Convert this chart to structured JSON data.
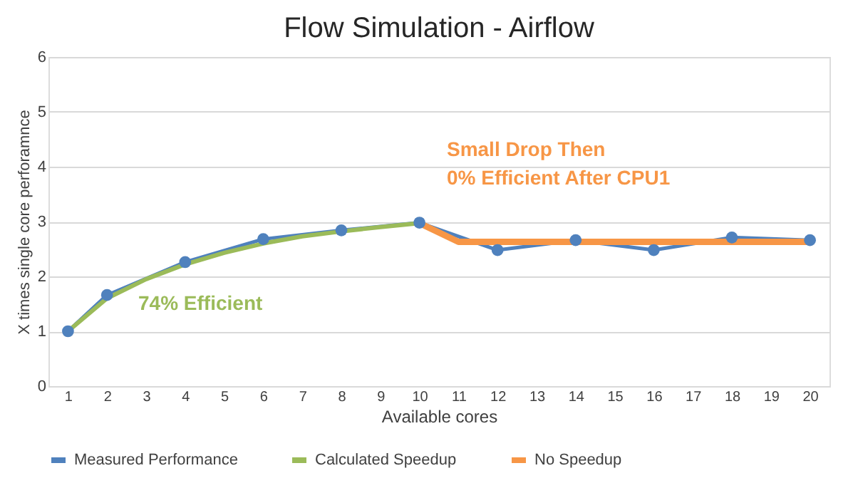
{
  "chart_data": {
    "type": "line",
    "title": "Flow Simulation - Airflow",
    "xlabel": "Available cores",
    "ylabel": "X times single core perforamnce",
    "xlim": [
      0.5,
      20.5
    ],
    "xticks": [
      1,
      2,
      3,
      4,
      5,
      6,
      7,
      8,
      9,
      10,
      11,
      12,
      13,
      14,
      15,
      16,
      17,
      18,
      19,
      20
    ],
    "ylim": [
      0,
      6
    ],
    "yticks": [
      0,
      1,
      2,
      3,
      4,
      5,
      6
    ],
    "grid": "y",
    "legend": "bottom",
    "line_style": "solid",
    "series": [
      {
        "name": "Measured Performance",
        "color": "#4f81bd",
        "marker": "circle",
        "x": [
          1,
          2,
          4,
          6,
          8,
          10,
          12,
          14,
          16,
          18,
          20
        ],
        "values": [
          1.0,
          1.66,
          2.26,
          2.68,
          2.84,
          2.98,
          2.48,
          2.66,
          2.48,
          2.71,
          2.66
        ]
      },
      {
        "name": "Calculated Speedup",
        "color": "#9bbb59",
        "marker": "none",
        "x": [
          1,
          2,
          3,
          4,
          5,
          6,
          7,
          8,
          9,
          10
        ],
        "values": [
          1.0,
          1.6,
          1.95,
          2.22,
          2.43,
          2.6,
          2.73,
          2.82,
          2.9,
          2.97
        ]
      },
      {
        "name": "No Speedup",
        "color": "#f79646",
        "marker": "none",
        "x": [
          10,
          11,
          12,
          13,
          14,
          15,
          16,
          17,
          18,
          19,
          20
        ],
        "values": [
          2.97,
          2.63,
          2.63,
          2.63,
          2.63,
          2.63,
          2.63,
          2.63,
          2.63,
          2.63,
          2.63
        ]
      }
    ],
    "annotations": [
      "74% Efficient",
      "Small Drop Then\n0% Efficient After CPU1"
    ]
  }
}
